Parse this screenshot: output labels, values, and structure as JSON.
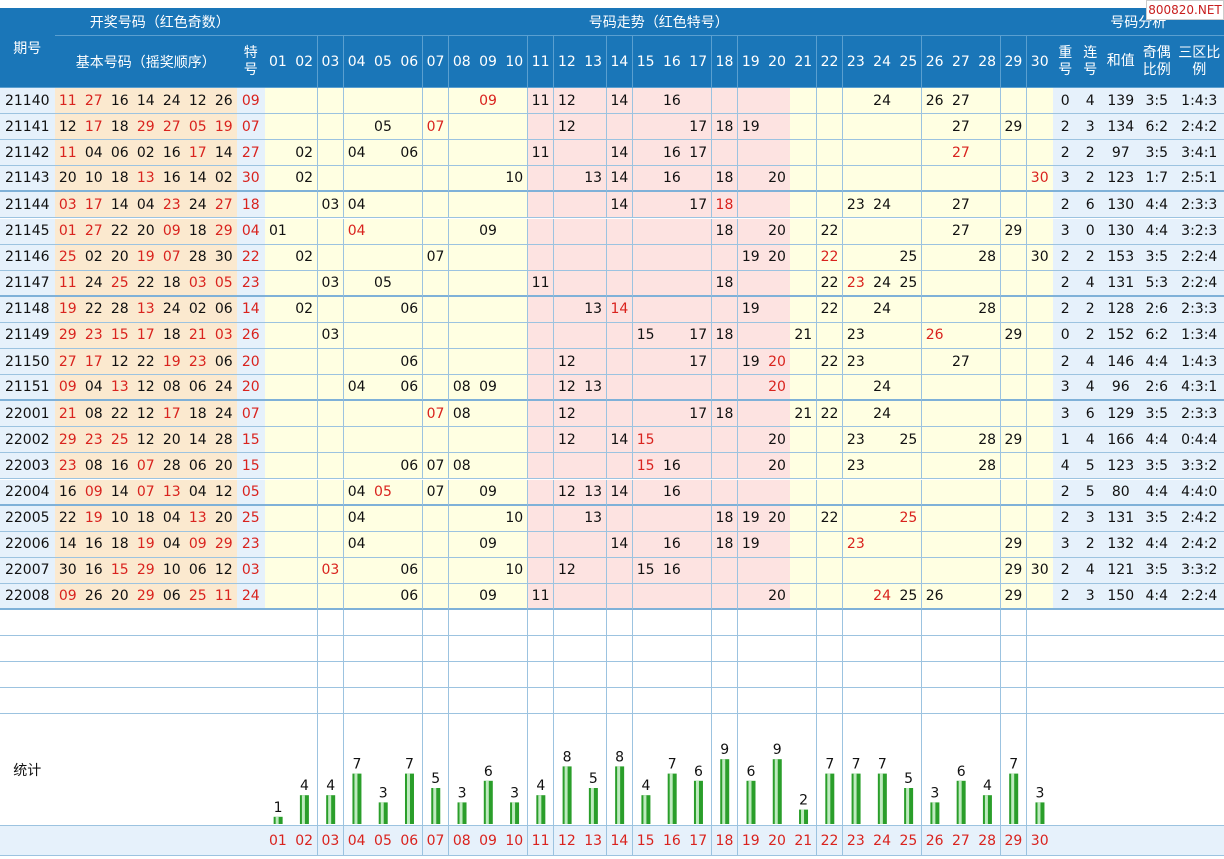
{
  "header": {
    "period_label": "期号",
    "draw_group": "开奖号码（红色奇数）",
    "basic_label": "基本号码（摇奖顺序）",
    "special_label": "特号",
    "trend_group": "号码走势（红色特号）",
    "analysis_group": "号码分析",
    "repeat_label": "重号",
    "consec_label": "连号",
    "sum_label": "和值",
    "parity_label": "奇偶比例",
    "zone_label": "三区比例"
  },
  "watermark": "800820.NET",
  "stats_label": "统计",
  "numbers": [
    "01",
    "02",
    "03",
    "04",
    "05",
    "06",
    "07",
    "08",
    "09",
    "10",
    "11",
    "12",
    "13",
    "14",
    "15",
    "16",
    "17",
    "18",
    "19",
    "20",
    "21",
    "22",
    "23",
    "24",
    "25",
    "26",
    "27",
    "28",
    "29",
    "30"
  ],
  "rows": [
    {
      "period": "21140",
      "basic": [
        "11",
        "27",
        "16",
        "14",
        "24",
        "12",
        "26"
      ],
      "special": "09",
      "repeat": "0",
      "consec": "4",
      "sum": "139",
      "parity": "3:5",
      "zone": "1:4:3"
    },
    {
      "period": "21141",
      "basic": [
        "12",
        "17",
        "18",
        "29",
        "27",
        "05",
        "19"
      ],
      "special": "07",
      "repeat": "2",
      "consec": "3",
      "sum": "134",
      "parity": "6:2",
      "zone": "2:4:2"
    },
    {
      "period": "21142",
      "basic": [
        "11",
        "04",
        "06",
        "02",
        "16",
        "17",
        "14"
      ],
      "special": "27",
      "repeat": "2",
      "consec": "2",
      "sum": "97",
      "parity": "3:5",
      "zone": "3:4:1"
    },
    {
      "period": "21143",
      "basic": [
        "20",
        "10",
        "18",
        "13",
        "16",
        "14",
        "02"
      ],
      "special": "30",
      "repeat": "3",
      "consec": "2",
      "sum": "123",
      "parity": "1:7",
      "zone": "2:5:1"
    },
    {
      "period": "21144",
      "basic": [
        "03",
        "17",
        "14",
        "04",
        "23",
        "24",
        "27"
      ],
      "special": "18",
      "repeat": "2",
      "consec": "6",
      "sum": "130",
      "parity": "4:4",
      "zone": "2:3:3"
    },
    {
      "period": "21145",
      "basic": [
        "01",
        "27",
        "22",
        "20",
        "09",
        "18",
        "29"
      ],
      "special": "04",
      "repeat": "3",
      "consec": "0",
      "sum": "130",
      "parity": "4:4",
      "zone": "3:2:3"
    },
    {
      "period": "21146",
      "basic": [
        "25",
        "02",
        "20",
        "19",
        "07",
        "28",
        "30"
      ],
      "special": "22",
      "repeat": "2",
      "consec": "2",
      "sum": "153",
      "parity": "3:5",
      "zone": "2:2:4"
    },
    {
      "period": "21147",
      "basic": [
        "11",
        "24",
        "25",
        "22",
        "18",
        "03",
        "05"
      ],
      "special": "23",
      "repeat": "2",
      "consec": "4",
      "sum": "131",
      "parity": "5:3",
      "zone": "2:2:4"
    },
    {
      "period": "21148",
      "basic": [
        "19",
        "22",
        "28",
        "13",
        "24",
        "02",
        "06"
      ],
      "special": "14",
      "repeat": "2",
      "consec": "2",
      "sum": "128",
      "parity": "2:6",
      "zone": "2:3:3"
    },
    {
      "period": "21149",
      "basic": [
        "29",
        "23",
        "15",
        "17",
        "18",
        "21",
        "03"
      ],
      "special": "26",
      "repeat": "0",
      "consec": "2",
      "sum": "152",
      "parity": "6:2",
      "zone": "1:3:4"
    },
    {
      "period": "21150",
      "basic": [
        "27",
        "17",
        "12",
        "22",
        "19",
        "23",
        "06"
      ],
      "special": "20",
      "repeat": "2",
      "consec": "4",
      "sum": "146",
      "parity": "4:4",
      "zone": "1:4:3"
    },
    {
      "period": "21151",
      "basic": [
        "09",
        "04",
        "13",
        "12",
        "08",
        "06",
        "24"
      ],
      "special": "20",
      "repeat": "3",
      "consec": "4",
      "sum": "96",
      "parity": "2:6",
      "zone": "4:3:1"
    },
    {
      "period": "22001",
      "basic": [
        "21",
        "08",
        "22",
        "12",
        "17",
        "18",
        "24"
      ],
      "special": "07",
      "repeat": "3",
      "consec": "6",
      "sum": "129",
      "parity": "3:5",
      "zone": "2:3:3"
    },
    {
      "period": "22002",
      "basic": [
        "29",
        "23",
        "25",
        "12",
        "20",
        "14",
        "28"
      ],
      "special": "15",
      "repeat": "1",
      "consec": "4",
      "sum": "166",
      "parity": "4:4",
      "zone": "0:4:4"
    },
    {
      "period": "22003",
      "basic": [
        "23",
        "08",
        "16",
        "07",
        "28",
        "06",
        "20"
      ],
      "special": "15",
      "repeat": "4",
      "consec": "5",
      "sum": "123",
      "parity": "3:5",
      "zone": "3:3:2"
    },
    {
      "period": "22004",
      "basic": [
        "16",
        "09",
        "14",
        "07",
        "13",
        "04",
        "12"
      ],
      "special": "05",
      "repeat": "2",
      "consec": "5",
      "sum": "80",
      "parity": "4:4",
      "zone": "4:4:0"
    },
    {
      "period": "22005",
      "basic": [
        "22",
        "19",
        "10",
        "18",
        "04",
        "13",
        "20"
      ],
      "special": "25",
      "repeat": "2",
      "consec": "3",
      "sum": "131",
      "parity": "3:5",
      "zone": "2:4:2"
    },
    {
      "period": "22006",
      "basic": [
        "14",
        "16",
        "18",
        "19",
        "04",
        "09",
        "29"
      ],
      "special": "23",
      "repeat": "3",
      "consec": "2",
      "sum": "132",
      "parity": "4:4",
      "zone": "2:4:2"
    },
    {
      "period": "22007",
      "basic": [
        "30",
        "16",
        "15",
        "29",
        "10",
        "06",
        "12"
      ],
      "special": "03",
      "repeat": "2",
      "consec": "4",
      "sum": "121",
      "parity": "3:5",
      "zone": "3:3:2"
    },
    {
      "period": "22008",
      "basic": [
        "09",
        "26",
        "20",
        "29",
        "06",
        "25",
        "11"
      ],
      "special": "24",
      "repeat": "2",
      "consec": "3",
      "sum": "150",
      "parity": "4:4",
      "zone": "2:2:4"
    }
  ],
  "chart_data": {
    "type": "bar",
    "title": "",
    "categories": [
      "01",
      "02",
      "03",
      "04",
      "05",
      "06",
      "07",
      "08",
      "09",
      "10",
      "11",
      "12",
      "13",
      "14",
      "15",
      "16",
      "17",
      "18",
      "19",
      "20",
      "21",
      "22",
      "23",
      "24",
      "25",
      "26",
      "27",
      "28",
      "29",
      "30"
    ],
    "values": [
      1,
      4,
      4,
      7,
      3,
      7,
      5,
      3,
      6,
      3,
      4,
      8,
      5,
      8,
      4,
      7,
      6,
      9,
      6,
      9,
      2,
      7,
      7,
      7,
      5,
      3,
      6,
      4,
      7,
      3
    ],
    "ylim": [
      0,
      9
    ],
    "colors": {
      "bar": "#2a9e2a",
      "bar_light": "#bfeabf",
      "odd": "#d9231e"
    }
  }
}
